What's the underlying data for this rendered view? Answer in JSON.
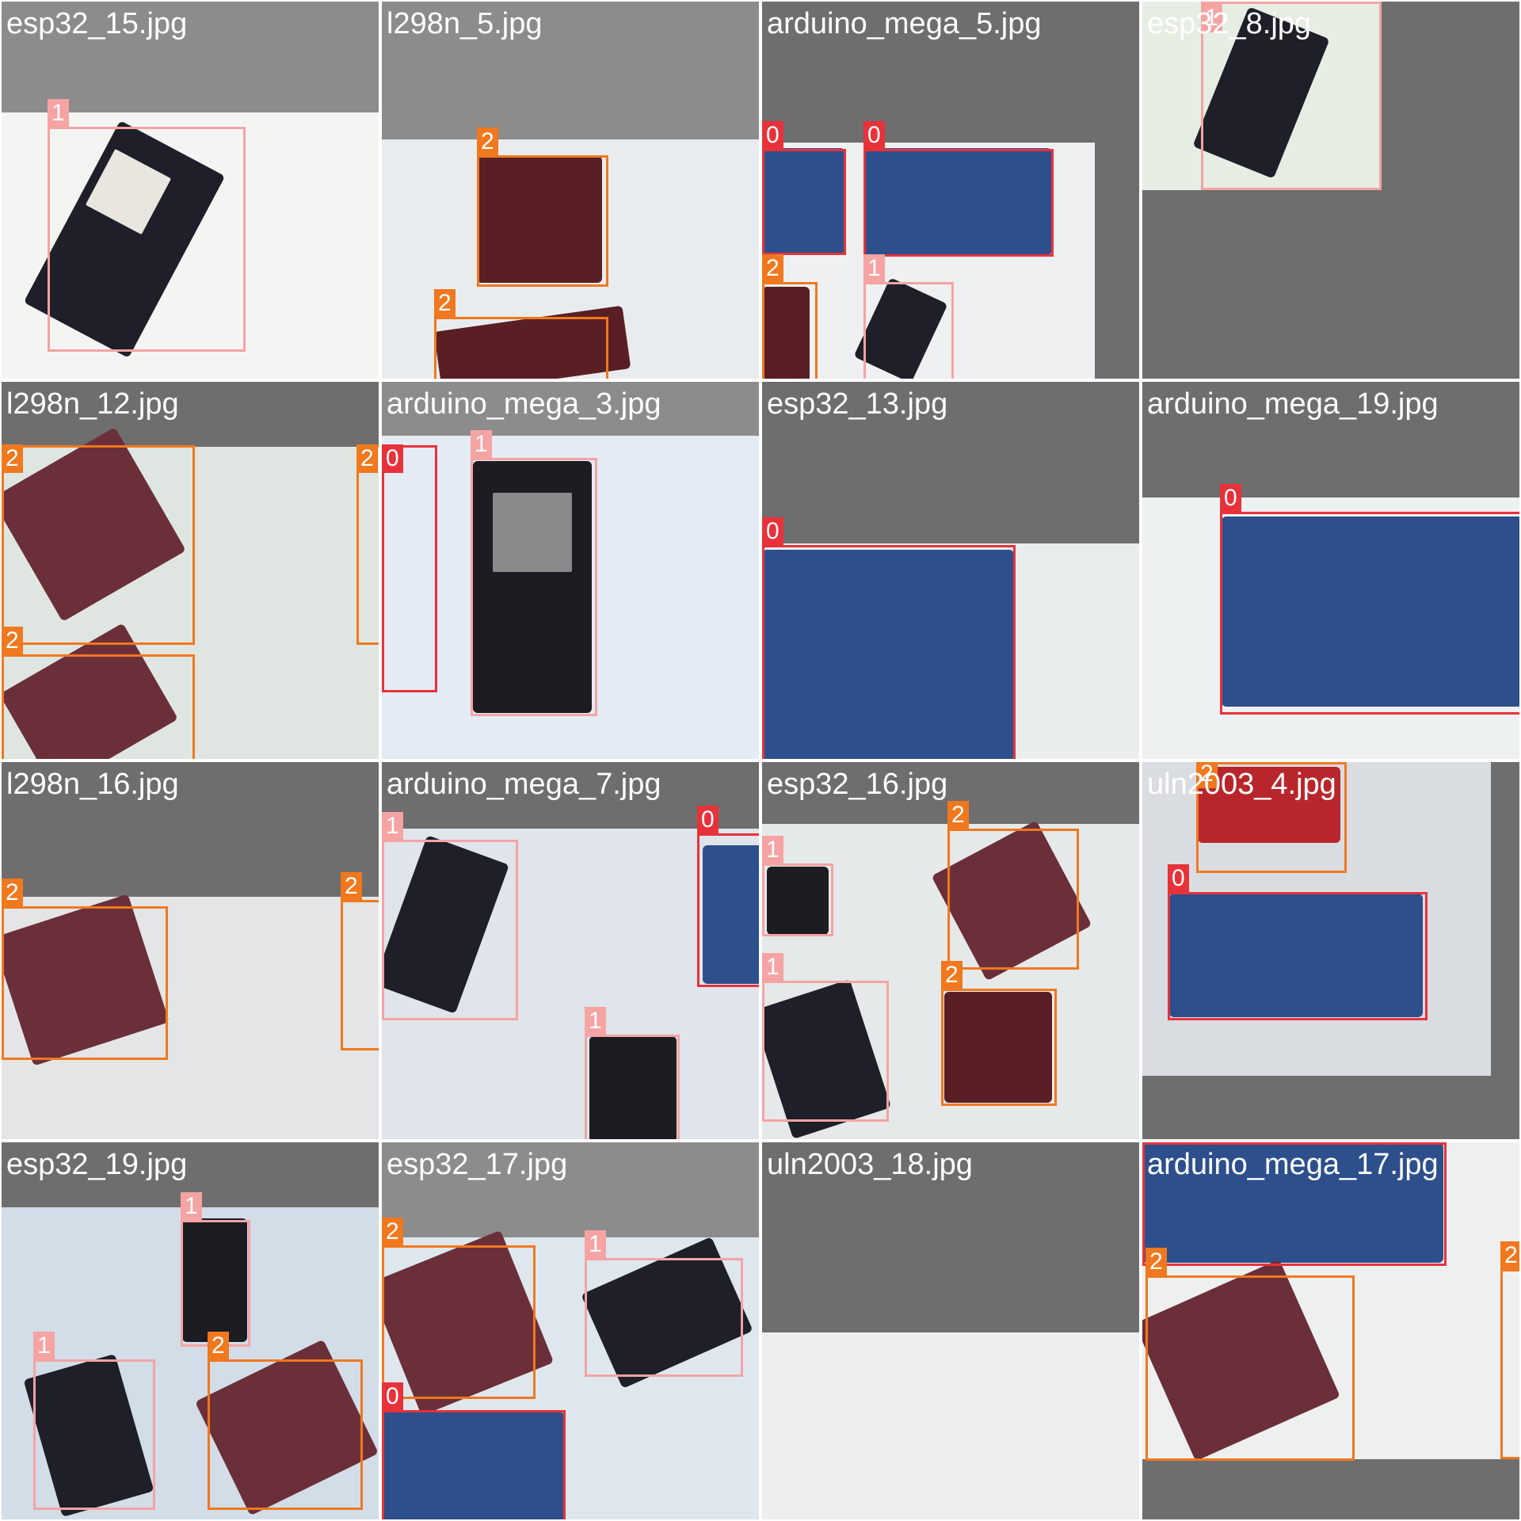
{
  "colors": {
    "class_0": "#e8323a",
    "class_1": "#f5a3a3",
    "class_2": "#f0781e",
    "dark_bg": "#6e6e6e",
    "mid_bg": "#8c8c8c"
  },
  "tiles": [
    {
      "filename": "esp32_15.jpg",
      "boxes": [
        {
          "label": "1"
        }
      ]
    },
    {
      "filename": "l298n_5.jpg",
      "boxes": [
        {
          "label": "2"
        },
        {
          "label": "2"
        }
      ]
    },
    {
      "filename": "arduino_mega_5.jpg",
      "boxes": [
        {
          "label": "0"
        },
        {
          "label": "0"
        },
        {
          "label": "2"
        },
        {
          "label": "1"
        }
      ]
    },
    {
      "filename": "esp32_8.jpg",
      "boxes": [
        {
          "label": "1"
        }
      ]
    },
    {
      "filename": "l298n_12.jpg",
      "boxes": [
        {
          "label": "2"
        },
        {
          "label": "2"
        },
        {
          "label": "2"
        }
      ]
    },
    {
      "filename": "arduino_mega_3.jpg",
      "boxes": [
        {
          "label": "0"
        },
        {
          "label": "1"
        }
      ]
    },
    {
      "filename": "esp32_13.jpg",
      "boxes": [
        {
          "label": "0"
        }
      ]
    },
    {
      "filename": "arduino_mega_19.jpg",
      "boxes": [
        {
          "label": "0"
        }
      ]
    },
    {
      "filename": "l298n_16.jpg",
      "boxes": [
        {
          "label": "2"
        },
        {
          "label": "2"
        }
      ]
    },
    {
      "filename": "arduino_mega_7.jpg",
      "boxes": [
        {
          "label": "1"
        },
        {
          "label": "0"
        },
        {
          "label": "1"
        }
      ]
    },
    {
      "filename": "esp32_16.jpg",
      "boxes": [
        {
          "label": "2"
        },
        {
          "label": "1"
        },
        {
          "label": "1"
        },
        {
          "label": "2"
        }
      ]
    },
    {
      "filename": "uln2003_4.jpg",
      "boxes": [
        {
          "label": "2"
        },
        {
          "label": "0"
        }
      ]
    },
    {
      "filename": "esp32_19.jpg",
      "boxes": [
        {
          "label": "1"
        },
        {
          "label": "1"
        },
        {
          "label": "2"
        }
      ]
    },
    {
      "filename": "esp32_17.jpg",
      "boxes": [
        {
          "label": "2"
        },
        {
          "label": "1"
        },
        {
          "label": "0"
        }
      ]
    },
    {
      "filename": "uln2003_18.jpg",
      "boxes": []
    },
    {
      "filename": "arduino_mega_17.jpg",
      "boxes": [
        {
          "label": "0"
        },
        {
          "label": "2"
        },
        {
          "label": "2"
        }
      ]
    }
  ]
}
